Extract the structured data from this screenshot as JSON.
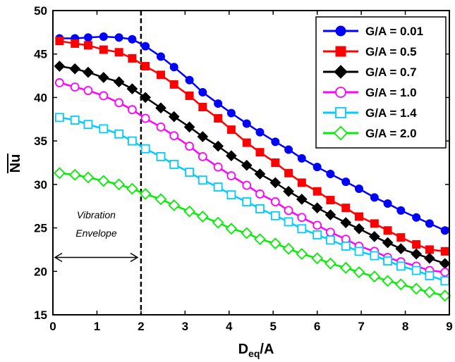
{
  "chart_data": {
    "type": "line",
    "xlabel_main": "D",
    "xlabel_sub": "eq",
    "xlabel_tail": "/A",
    "ylabel": "Nu",
    "xlim": [
      0,
      9
    ],
    "ylim": [
      15,
      50
    ],
    "xticks": [
      0,
      1,
      2,
      3,
      4,
      5,
      6,
      7,
      8,
      9
    ],
    "yticks": [
      15,
      20,
      25,
      30,
      35,
      40,
      45,
      50
    ],
    "grid": false,
    "legend_position": "top-right",
    "vline_x": 2,
    "annotation": {
      "line1": "Vibration",
      "line2": "Envelope",
      "arrow_from": 0,
      "arrow_to": 2
    },
    "x": [
      0.15,
      0.5,
      0.8,
      1.15,
      1.5,
      1.8,
      2.1,
      2.45,
      2.75,
      3.1,
      3.4,
      3.75,
      4.05,
      4.4,
      4.7,
      5.05,
      5.35,
      5.65,
      6.0,
      6.3,
      6.65,
      6.95,
      7.3,
      7.6,
      7.9,
      8.25,
      8.55,
      8.9
    ],
    "series": [
      {
        "name": "G/A = 0.01",
        "color": "#0000ff",
        "marker": "circle",
        "filled": true,
        "values": [
          46.8,
          46.8,
          46.9,
          47.0,
          46.9,
          46.7,
          45.9,
          44.7,
          43.5,
          42.0,
          40.6,
          39.3,
          38.2,
          37.0,
          36.0,
          34.9,
          34.0,
          33.0,
          32.0,
          31.2,
          30.3,
          29.5,
          28.5,
          27.8,
          27.0,
          26.2,
          25.5,
          24.7
        ]
      },
      {
        "name": "G/A = 0.5",
        "color": "#ff0000",
        "marker": "square",
        "filled": true,
        "values": [
          46.5,
          46.2,
          46.0,
          45.5,
          45.2,
          44.5,
          43.6,
          42.6,
          41.5,
          40.2,
          38.9,
          37.6,
          36.3,
          34.8,
          33.7,
          32.5,
          31.3,
          30.2,
          29.2,
          28.2,
          27.3,
          26.3,
          25.5,
          24.7,
          23.9,
          23.1,
          22.5,
          22.3
        ]
      },
      {
        "name": "G/A = 0.7",
        "color": "#000000",
        "marker": "diamond",
        "filled": true,
        "values": [
          43.6,
          43.3,
          42.9,
          42.3,
          41.8,
          41.0,
          40.0,
          38.8,
          37.8,
          36.6,
          35.5,
          34.4,
          33.3,
          32.2,
          31.2,
          30.2,
          29.2,
          28.3,
          27.3,
          26.5,
          25.6,
          24.9,
          24.0,
          23.3,
          22.6,
          22.0,
          21.5,
          20.9
        ]
      },
      {
        "name": "G/A = 1.0",
        "color": "#ff00ff",
        "marker": "circle",
        "filled": false,
        "values": [
          41.7,
          41.2,
          40.8,
          40.2,
          39.4,
          38.6,
          37.6,
          36.6,
          35.6,
          34.4,
          33.2,
          32.0,
          31.0,
          29.9,
          28.9,
          28.0,
          27.0,
          26.2,
          25.3,
          24.5,
          23.7,
          22.9,
          22.3,
          21.6,
          21.1,
          20.6,
          20.1,
          19.9
        ]
      },
      {
        "name": "G/A = 1.4",
        "color": "#00ccff",
        "marker": "square",
        "filled": false,
        "values": [
          37.7,
          37.4,
          36.9,
          36.4,
          35.8,
          35.0,
          34.1,
          33.2,
          32.3,
          31.4,
          30.5,
          29.7,
          28.8,
          28.0,
          27.2,
          26.4,
          25.7,
          24.9,
          24.2,
          23.6,
          22.9,
          22.3,
          21.8,
          21.2,
          20.6,
          20.1,
          19.5,
          18.9
        ]
      },
      {
        "name": "G/A = 2.0",
        "color": "#00ee00",
        "marker": "diamond",
        "filled": false,
        "values": [
          31.3,
          31.1,
          30.8,
          30.4,
          30.0,
          29.5,
          28.9,
          28.3,
          27.6,
          26.9,
          26.3,
          25.6,
          24.9,
          24.4,
          23.7,
          23.2,
          22.6,
          22.0,
          21.5,
          20.9,
          20.4,
          19.9,
          19.4,
          18.9,
          18.5,
          18.0,
          17.6,
          17.2
        ]
      }
    ]
  }
}
